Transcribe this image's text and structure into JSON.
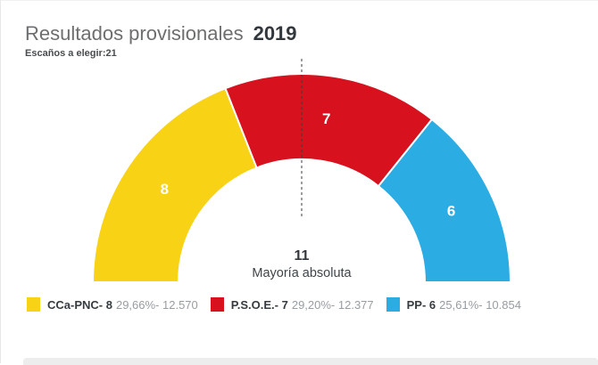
{
  "header": {
    "title": "Resultados provisionales",
    "year": "2019",
    "subtitle": "Escaños a elegir:21"
  },
  "chart_data": {
    "type": "pie",
    "variant": "semicircle-donut-hemicycle",
    "total_seats": 21,
    "majority": {
      "value": "11",
      "label": "Mayoría absoluta"
    },
    "series": [
      {
        "name": "CCa-PNC",
        "seats": 8,
        "percent": "29,66%",
        "votes": "12.570",
        "color": "#f7d215",
        "legend_label": "CCa-PNC- 8",
        "legend_detail": "29,66%- 12.570"
      },
      {
        "name": "P.S.O.E.",
        "seats": 7,
        "percent": "29,20%",
        "votes": "12.377",
        "color": "#d8111e",
        "legend_label": "P.S.O.E.- 7",
        "legend_detail": "29,20%- 12.377"
      },
      {
        "name": "PP",
        "seats": 6,
        "percent": "25,61%",
        "votes": "10.854",
        "color": "#2bace2",
        "legend_label": "PP- 6",
        "legend_detail": "25,61%- 10.854"
      }
    ]
  }
}
